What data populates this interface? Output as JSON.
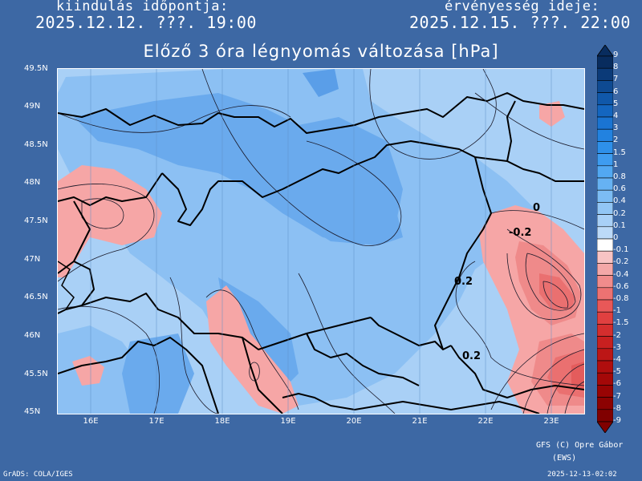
{
  "header": {
    "start_label": "kiindulás időpontja:",
    "start_value": "2025.12.12. ???. 19:00",
    "valid_label": "érvényesség ideje:",
    "valid_value": "2025.12.15. ???. 22:00"
  },
  "title": "Előző 3 óra légnyomás változása [hPa]",
  "axes": {
    "y_ticks": [
      "49.5N",
      "49N",
      "48.5N",
      "48N",
      "47.5N",
      "47N",
      "46.5N",
      "46N",
      "45.5N",
      "45N"
    ],
    "x_ticks": [
      "16E",
      "17E",
      "18E",
      "19E",
      "20E",
      "21E",
      "22E",
      "23E"
    ],
    "lat_range": [
      45,
      49.5
    ],
    "lon_range": [
      15.5,
      23.5
    ]
  },
  "contour_labels": [
    {
      "text": "0",
      "lon": 22.8,
      "lat": 47.7
    },
    {
      "text": "-0.2",
      "lon": 22.6,
      "lat": 47.4
    },
    {
      "text": "0.2",
      "lon": 21.55,
      "lat": 46.7
    },
    {
      "text": "0.2",
      "lon": 21.8,
      "lat": 45.7
    }
  ],
  "legend": {
    "labels": [
      "9",
      "8",
      "7",
      "6",
      "5",
      "4",
      "3",
      "2",
      "1.5",
      "1",
      "0.8",
      "0.6",
      "0.4",
      "0.2",
      "0.1",
      "0",
      "-0.1",
      "-0.2",
      "-0.4",
      "-0.6",
      "-0.8",
      "-1",
      "-1.5",
      "-2",
      "-3",
      "-4",
      "-5",
      "-6",
      "-7",
      "-8",
      "-9"
    ],
    "colors": [
      "#082c5e",
      "#0b3a78",
      "#0e4a92",
      "#1058aa",
      "#1466c0",
      "#1a74d2",
      "#2282e0",
      "#2e90ea",
      "#3e9cf0",
      "#52a8f2",
      "#66b2f3",
      "#7cbcf4",
      "#92c6f5",
      "#a8d0f7",
      "#bcdaf8",
      "#ffffff",
      "#f8c4c4",
      "#f4a8a8",
      "#f08c8c",
      "#ec7272",
      "#e85858",
      "#e04040",
      "#d42e2e",
      "#c82020",
      "#bc1616",
      "#b00e0e",
      "#a40808",
      "#980404",
      "#8c0202",
      "#800000"
    ]
  },
  "footer": {
    "credit1": "GFS (C) Opre Gábor",
    "credit2": "(EWS)",
    "grads": "GrADS: COLA/IGES",
    "timestamp": "2025-12-13-02:02"
  }
}
